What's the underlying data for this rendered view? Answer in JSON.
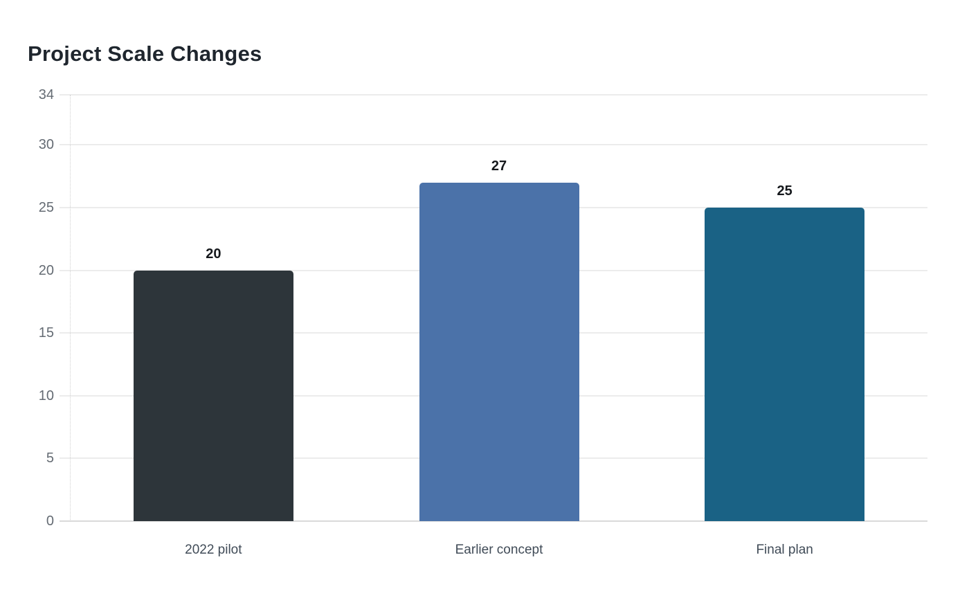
{
  "chart_data": {
    "type": "bar",
    "title": "Project Scale Changes",
    "categories": [
      "2022 pilot",
      "Earlier concept",
      "Final plan"
    ],
    "values": [
      20,
      27,
      25
    ],
    "value_labels": [
      "20",
      "27",
      "25"
    ],
    "bar_colors": [
      "#2d353a",
      "#4b72a9",
      "#1a6285"
    ],
    "xlabel": "",
    "ylabel": "",
    "ylim": [
      0,
      34
    ],
    "yticks": [
      0,
      5,
      10,
      15,
      20,
      25,
      30,
      34
    ],
    "grid": true,
    "legend": false,
    "colors": {
      "background": "#ffffff",
      "title": "#1f262e",
      "gridline": "#ececec",
      "zero_line": "#d9d9d9",
      "axis_guide": "#cfcfcf",
      "tick_label": "#646b73",
      "category_label": "#404b57",
      "value_label": "#15181c"
    }
  }
}
